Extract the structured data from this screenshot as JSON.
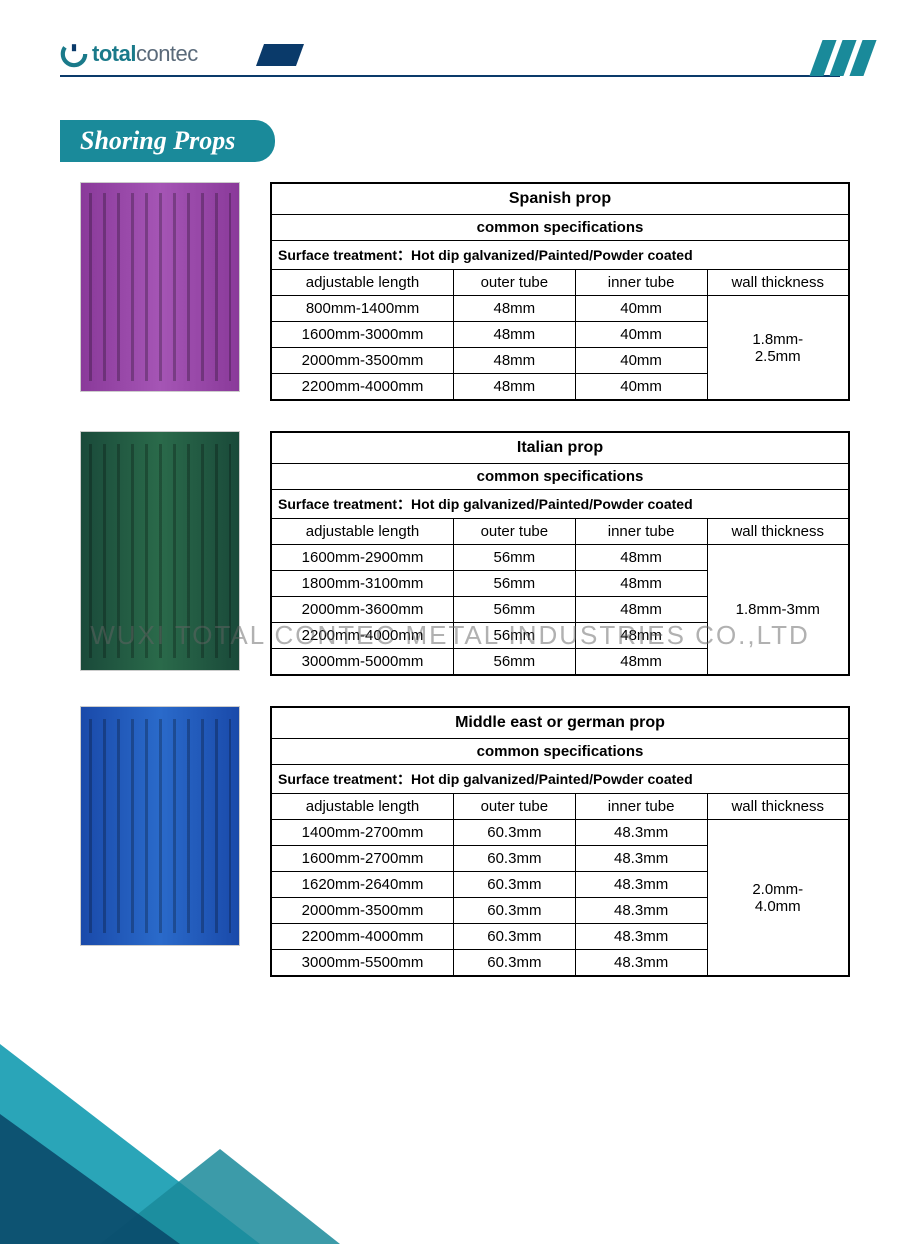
{
  "brand": {
    "bold": "total",
    "light": "contec"
  },
  "section_title": "Shoring Props",
  "watermark": "WUXI TOTAL CONTEC METAL INDUSTRIES CO.,LTD",
  "colors": {
    "brand_teal": "#1a8a9a",
    "brand_navy": "#0a3a6a",
    "table_border": "#000000",
    "triangle_light": "#2aa5b8",
    "triangle_dark": "#0a4a6a"
  },
  "common": {
    "sub_title": "common specifications",
    "treatment_label": "Surface treatment：Hot dip galvanized/Painted/Powder coated",
    "hdr_len": "adjustable length",
    "hdr_outer": "outer tube",
    "hdr_inner": "inner tube",
    "hdr_wall": "wall thickness"
  },
  "tables": [
    {
      "title": "Spanish prop",
      "image_class": "purple",
      "inner_header_bold": true,
      "wall": "1.8mm-\n2.5mm",
      "rows": [
        {
          "len": "800mm-1400mm",
          "outer": "48mm",
          "inner": "40mm"
        },
        {
          "len": "1600mm-3000mm",
          "outer": "48mm",
          "inner": "40mm"
        },
        {
          "len": "2000mm-3500mm",
          "outer": "48mm",
          "inner": "40mm"
        },
        {
          "len": "2200mm-4000mm",
          "outer": "48mm",
          "inner": "40mm"
        }
      ]
    },
    {
      "title": "Italian prop",
      "image_class": "green",
      "inner_header_bold": true,
      "wall": "1.8mm-3mm",
      "rows": [
        {
          "len": "1600mm-2900mm",
          "outer": "56mm",
          "inner": "48mm"
        },
        {
          "len": "1800mm-3100mm",
          "outer": "56mm",
          "inner": "48mm"
        },
        {
          "len": "2000mm-3600mm",
          "outer": "56mm",
          "inner": "48mm"
        },
        {
          "len": "2200mm-4000mm",
          "outer": "56mm",
          "inner": "48mm"
        },
        {
          "len": "3000mm-5000mm",
          "outer": "56mm",
          "inner": "48mm"
        }
      ]
    },
    {
      "title": "Middle east or german prop",
      "image_class": "blue",
      "inner_header_bold": false,
      "wall": "2.0mm-\n4.0mm",
      "rows": [
        {
          "len": "1400mm-2700mm",
          "outer": "60.3mm",
          "inner": "48.3mm"
        },
        {
          "len": "1600mm-2700mm",
          "outer": "60.3mm",
          "inner": "48.3mm"
        },
        {
          "len": "1620mm-2640mm",
          "outer": "60.3mm",
          "inner": "48.3mm"
        },
        {
          "len": "2000mm-3500mm",
          "outer": "60.3mm",
          "inner": "48.3mm"
        },
        {
          "len": "2200mm-4000mm",
          "outer": "60.3mm",
          "inner": "48.3mm"
        },
        {
          "len": "3000mm-5500mm",
          "outer": "60.3mm",
          "inner": "48.3mm"
        }
      ]
    }
  ]
}
